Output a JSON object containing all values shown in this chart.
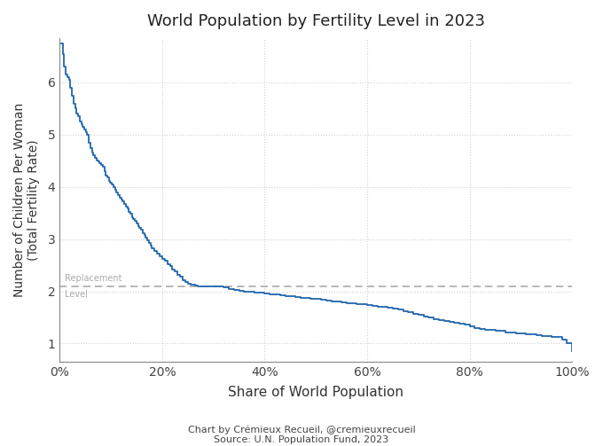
{
  "title": "World Population by Fertility Level in 2023",
  "xlabel": "Share of World Population",
  "ylabel": "Number of Children Per Woman\n(Total Fertility Rate)",
  "caption_line1": "Chart by Crémieux Recueil, @cremieuxrecueil",
  "caption_line2": "Source: U.N. Population Fund, 2023",
  "replacement_level": 2.1,
  "replacement_label_line1": "Replacement",
  "replacement_label_line2": "Level",
  "line_color": "#2166ac",
  "replacement_color": "#aaaaaa",
  "grid_color": "#d0d0d0",
  "background_color": "#ffffff",
  "xlim": [
    0,
    100
  ],
  "ylim": [
    0.65,
    6.85
  ],
  "yticks": [
    1,
    2,
    3,
    4,
    5,
    6
  ],
  "xtick_labels": [
    "0%",
    "20%",
    "40%",
    "60%",
    "80%",
    "100%"
  ],
  "xtick_positions": [
    0,
    20,
    40,
    60,
    80,
    100
  ],
  "curve_x": [
    0.3,
    0.6,
    0.9,
    1.2,
    1.5,
    1.8,
    2.1,
    2.4,
    2.7,
    3.0,
    3.3,
    3.6,
    3.9,
    4.2,
    4.5,
    4.8,
    5.1,
    5.4,
    5.7,
    6.0,
    6.3,
    6.6,
    6.9,
    7.2,
    7.5,
    7.8,
    8.1,
    8.4,
    8.7,
    9.0,
    9.3,
    9.6,
    9.9,
    10.2,
    10.5,
    10.8,
    11.1,
    11.4,
    11.7,
    12.0,
    12.3,
    12.6,
    12.9,
    13.2,
    13.5,
    13.8,
    14.1,
    14.4,
    14.7,
    15.0,
    15.3,
    15.6,
    15.9,
    16.2,
    16.5,
    16.8,
    17.1,
    17.4,
    17.7,
    18.0,
    18.5,
    19.0,
    19.5,
    20.0,
    20.5,
    21.0,
    21.5,
    22.0,
    22.5,
    23.0,
    23.5,
    24.0,
    24.5,
    25.0,
    25.5,
    26.0,
    26.5,
    27.0,
    27.5,
    28.0,
    28.5,
    29.0,
    29.5,
    30.0,
    30.5,
    31.0,
    31.5,
    32.0,
    33.0,
    34.0,
    35.0,
    36.0,
    37.0,
    38.0,
    39.0,
    40.0,
    41.0,
    42.0,
    43.0,
    44.0,
    45.0,
    46.0,
    47.0,
    48.0,
    49.0,
    50.0,
    51.0,
    52.0,
    53.0,
    54.0,
    55.0,
    56.0,
    57.0,
    58.0,
    59.0,
    60.0,
    61.0,
    62.0,
    63.0,
    64.0,
    65.0,
    66.0,
    67.0,
    68.0,
    69.0,
    70.0,
    71.0,
    72.0,
    73.0,
    74.0,
    75.0,
    76.0,
    77.0,
    78.0,
    79.0,
    80.0,
    81.0,
    82.0,
    83.0,
    84.0,
    85.0,
    86.0,
    87.0,
    88.0,
    89.0,
    90.0,
    91.0,
    92.0,
    93.0,
    94.0,
    95.0,
    96.0,
    97.0,
    98.0,
    99.0,
    100.0
  ],
  "curve_y": [
    6.75,
    6.55,
    6.3,
    6.15,
    6.1,
    6.05,
    5.9,
    5.75,
    5.6,
    5.5,
    5.4,
    5.35,
    5.25,
    5.2,
    5.15,
    5.1,
    5.05,
    5.0,
    4.85,
    4.75,
    4.65,
    4.6,
    4.55,
    4.5,
    4.48,
    4.45,
    4.42,
    4.38,
    4.3,
    4.22,
    4.18,
    4.12,
    4.08,
    4.05,
    4.0,
    3.95,
    3.9,
    3.85,
    3.8,
    3.75,
    3.72,
    3.68,
    3.62,
    3.58,
    3.52,
    3.48,
    3.42,
    3.38,
    3.35,
    3.3,
    3.25,
    3.22,
    3.18,
    3.12,
    3.08,
    3.02,
    2.98,
    2.92,
    2.88,
    2.82,
    2.78,
    2.72,
    2.68,
    2.62,
    2.58,
    2.52,
    2.48,
    2.42,
    2.38,
    2.32,
    2.28,
    2.22,
    2.18,
    2.15,
    2.13,
    2.12,
    2.11,
    2.1,
    2.1,
    2.1,
    2.1,
    2.1,
    2.1,
    2.1,
    2.1,
    2.1,
    2.1,
    2.08,
    2.05,
    2.03,
    2.01,
    2.0,
    1.99,
    1.98,
    1.97,
    1.96,
    1.95,
    1.94,
    1.92,
    1.91,
    1.9,
    1.89,
    1.88,
    1.87,
    1.86,
    1.85,
    1.84,
    1.83,
    1.81,
    1.8,
    1.79,
    1.78,
    1.77,
    1.76,
    1.75,
    1.73,
    1.72,
    1.71,
    1.7,
    1.68,
    1.67,
    1.65,
    1.62,
    1.6,
    1.57,
    1.55,
    1.52,
    1.5,
    1.47,
    1.45,
    1.43,
    1.41,
    1.4,
    1.38,
    1.36,
    1.33,
    1.3,
    1.28,
    1.27,
    1.26,
    1.25,
    1.24,
    1.22,
    1.21,
    1.2,
    1.19,
    1.18,
    1.17,
    1.16,
    1.15,
    1.14,
    1.13,
    1.12,
    1.08,
    1.0,
    0.85
  ]
}
